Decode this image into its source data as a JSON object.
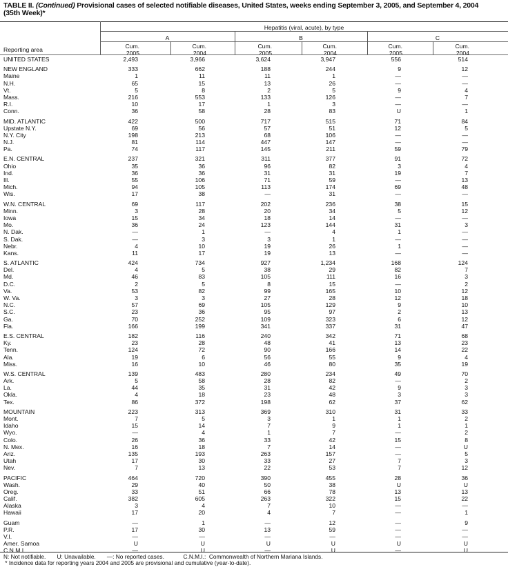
{
  "title": {
    "label": "TABLE II.",
    "continued": "(Continued)",
    "text": "Provisional cases of selected notifiable diseases, United States, weeks ending September 3, 2005, and September 4, 2004",
    "line2": "(35th Week)*"
  },
  "header": {
    "disease": "Hepatitis (viral, acute), by type",
    "types": [
      "A",
      "B",
      "C"
    ],
    "cum": "Cum.",
    "years": [
      "2005",
      "2004",
      "2005",
      "2004",
      "2005",
      "2004"
    ],
    "reporting_area": "Reporting area"
  },
  "groups": [
    {
      "rows": [
        {
          "area": "UNITED STATES",
          "values": [
            "2,493",
            "3,966",
            "3,624",
            "3,947",
            "556",
            "514"
          ]
        }
      ]
    },
    {
      "rows": [
        {
          "area": "NEW ENGLAND",
          "values": [
            "333",
            "662",
            "188",
            "244",
            "9",
            "12"
          ]
        },
        {
          "area": "Maine",
          "values": [
            "1",
            "11",
            "11",
            "1",
            "—",
            "—"
          ]
        },
        {
          "area": "N.H.",
          "values": [
            "65",
            "15",
            "13",
            "26",
            "—",
            "—"
          ]
        },
        {
          "area": "Vt.",
          "values": [
            "5",
            "8",
            "2",
            "5",
            "9",
            "4"
          ]
        },
        {
          "area": "Mass.",
          "values": [
            "216",
            "553",
            "133",
            "126",
            "—",
            "7"
          ]
        },
        {
          "area": "R.I.",
          "values": [
            "10",
            "17",
            "1",
            "3",
            "—",
            "—"
          ]
        },
        {
          "area": "Conn.",
          "values": [
            "36",
            "58",
            "28",
            "83",
            "U",
            "1"
          ]
        }
      ]
    },
    {
      "rows": [
        {
          "area": "MID. ATLANTIC",
          "values": [
            "422",
            "500",
            "717",
            "515",
            "71",
            "84"
          ]
        },
        {
          "area": "Upstate N.Y.",
          "values": [
            "69",
            "56",
            "57",
            "51",
            "12",
            "5"
          ]
        },
        {
          "area": "N.Y. City",
          "values": [
            "198",
            "213",
            "68",
            "106",
            "—",
            "—"
          ]
        },
        {
          "area": "N.J.",
          "values": [
            "81",
            "114",
            "447",
            "147",
            "—",
            "—"
          ]
        },
        {
          "area": "Pa.",
          "values": [
            "74",
            "117",
            "145",
            "211",
            "59",
            "79"
          ]
        }
      ]
    },
    {
      "rows": [
        {
          "area": "E.N. CENTRAL",
          "values": [
            "237",
            "321",
            "311",
            "377",
            "91",
            "72"
          ]
        },
        {
          "area": "Ohio",
          "values": [
            "35",
            "36",
            "96",
            "82",
            "3",
            "4"
          ]
        },
        {
          "area": "Ind.",
          "values": [
            "36",
            "36",
            "31",
            "31",
            "19",
            "7"
          ]
        },
        {
          "area": "Ill.",
          "values": [
            "55",
            "106",
            "71",
            "59",
            "—",
            "13"
          ]
        },
        {
          "area": "Mich.",
          "values": [
            "94",
            "105",
            "113",
            "174",
            "69",
            "48"
          ]
        },
        {
          "area": "Wis.",
          "values": [
            "17",
            "38",
            "—",
            "31",
            "—",
            "—"
          ]
        }
      ]
    },
    {
      "rows": [
        {
          "area": "W.N. CENTRAL",
          "values": [
            "69",
            "117",
            "202",
            "236",
            "38",
            "15"
          ]
        },
        {
          "area": "Minn.",
          "values": [
            "3",
            "28",
            "20",
            "34",
            "5",
            "12"
          ]
        },
        {
          "area": "Iowa",
          "values": [
            "15",
            "34",
            "18",
            "14",
            "—",
            "—"
          ]
        },
        {
          "area": "Mo.",
          "values": [
            "36",
            "24",
            "123",
            "144",
            "31",
            "3"
          ]
        },
        {
          "area": "N. Dak.",
          "values": [
            "—",
            "1",
            "—",
            "4",
            "1",
            "—"
          ]
        },
        {
          "area": "S. Dak.",
          "values": [
            "—",
            "3",
            "3",
            "1",
            "—",
            "—"
          ]
        },
        {
          "area": "Nebr.",
          "values": [
            "4",
            "10",
            "19",
            "26",
            "1",
            "—"
          ]
        },
        {
          "area": "Kans.",
          "values": [
            "11",
            "17",
            "19",
            "13",
            "—",
            "—"
          ]
        }
      ]
    },
    {
      "rows": [
        {
          "area": "S. ATLANTIC",
          "values": [
            "424",
            "734",
            "927",
            "1,234",
            "168",
            "124"
          ]
        },
        {
          "area": "Del.",
          "values": [
            "4",
            "5",
            "38",
            "29",
            "82",
            "7"
          ]
        },
        {
          "area": "Md.",
          "values": [
            "46",
            "83",
            "105",
            "111",
            "16",
            "3"
          ]
        },
        {
          "area": "D.C.",
          "values": [
            "2",
            "5",
            "8",
            "15",
            "—",
            "2"
          ]
        },
        {
          "area": "Va.",
          "values": [
            "53",
            "82",
            "99",
            "165",
            "10",
            "12"
          ]
        },
        {
          "area": "W. Va.",
          "values": [
            "3",
            "3",
            "27",
            "28",
            "12",
            "18"
          ]
        },
        {
          "area": "N.C.",
          "values": [
            "57",
            "69",
            "105",
            "129",
            "9",
            "10"
          ]
        },
        {
          "area": "S.C.",
          "values": [
            "23",
            "36",
            "95",
            "97",
            "2",
            "13"
          ]
        },
        {
          "area": "Ga.",
          "values": [
            "70",
            "252",
            "109",
            "323",
            "6",
            "12"
          ]
        },
        {
          "area": "Fla.",
          "values": [
            "166",
            "199",
            "341",
            "337",
            "31",
            "47"
          ]
        }
      ]
    },
    {
      "rows": [
        {
          "area": "E.S. CENTRAL",
          "values": [
            "182",
            "116",
            "240",
            "342",
            "71",
            "68"
          ]
        },
        {
          "area": "Ky.",
          "values": [
            "23",
            "28",
            "48",
            "41",
            "13",
            "23"
          ]
        },
        {
          "area": "Tenn.",
          "values": [
            "124",
            "72",
            "90",
            "166",
            "14",
            "22"
          ]
        },
        {
          "area": "Ala.",
          "values": [
            "19",
            "6",
            "56",
            "55",
            "9",
            "4"
          ]
        },
        {
          "area": "Miss.",
          "values": [
            "16",
            "10",
            "46",
            "80",
            "35",
            "19"
          ]
        }
      ]
    },
    {
      "rows": [
        {
          "area": "W.S. CENTRAL",
          "values": [
            "139",
            "483",
            "280",
            "234",
            "49",
            "70"
          ]
        },
        {
          "area": "Ark.",
          "values": [
            "5",
            "58",
            "28",
            "82",
            "—",
            "2"
          ]
        },
        {
          "area": "La.",
          "values": [
            "44",
            "35",
            "31",
            "42",
            "9",
            "3"
          ]
        },
        {
          "area": "Okla.",
          "values": [
            "4",
            "18",
            "23",
            "48",
            "3",
            "3"
          ]
        },
        {
          "area": "Tex.",
          "values": [
            "86",
            "372",
            "198",
            "62",
            "37",
            "62"
          ]
        }
      ]
    },
    {
      "rows": [
        {
          "area": "MOUNTAIN",
          "values": [
            "223",
            "313",
            "369",
            "310",
            "31",
            "33"
          ]
        },
        {
          "area": "Mont.",
          "values": [
            "7",
            "5",
            "3",
            "1",
            "1",
            "2"
          ]
        },
        {
          "area": "Idaho",
          "values": [
            "15",
            "14",
            "7",
            "9",
            "1",
            "1"
          ]
        },
        {
          "area": "Wyo.",
          "values": [
            "—",
            "4",
            "1",
            "7",
            "—",
            "2"
          ]
        },
        {
          "area": "Colo.",
          "values": [
            "26",
            "36",
            "33",
            "42",
            "15",
            "8"
          ]
        },
        {
          "area": "N. Mex.",
          "values": [
            "16",
            "18",
            "7",
            "14",
            "—",
            "U"
          ]
        },
        {
          "area": "Ariz.",
          "values": [
            "135",
            "193",
            "263",
            "157",
            "—",
            "5"
          ]
        },
        {
          "area": "Utah",
          "values": [
            "17",
            "30",
            "33",
            "27",
            "7",
            "3"
          ]
        },
        {
          "area": "Nev.",
          "values": [
            "7",
            "13",
            "22",
            "53",
            "7",
            "12"
          ]
        }
      ]
    },
    {
      "rows": [
        {
          "area": "PACIFIC",
          "values": [
            "464",
            "720",
            "390",
            "455",
            "28",
            "36"
          ]
        },
        {
          "area": "Wash.",
          "values": [
            "29",
            "40",
            "50",
            "38",
            "U",
            "U"
          ]
        },
        {
          "area": "Oreg.",
          "values": [
            "33",
            "51",
            "66",
            "78",
            "13",
            "13"
          ]
        },
        {
          "area": "Calif.",
          "values": [
            "382",
            "605",
            "263",
            "322",
            "15",
            "22"
          ]
        },
        {
          "area": "Alaska",
          "values": [
            "3",
            "4",
            "7",
            "10",
            "—",
            "—"
          ]
        },
        {
          "area": "Hawaii",
          "values": [
            "17",
            "20",
            "4",
            "7",
            "—",
            "1"
          ]
        }
      ]
    },
    {
      "rows": [
        {
          "area": "Guam",
          "values": [
            "—",
            "1",
            "—",
            "12",
            "—",
            "9"
          ]
        },
        {
          "area": "P.R.",
          "values": [
            "17",
            "30",
            "13",
            "59",
            "—",
            "—"
          ]
        },
        {
          "area": "V.I.",
          "values": [
            "—",
            "—",
            "—",
            "—",
            "—",
            "—"
          ]
        },
        {
          "area": "Amer. Samoa",
          "values": [
            "U",
            "U",
            "U",
            "U",
            "U",
            "U"
          ]
        },
        {
          "area": "C.N.M.I.",
          "values": [
            "—",
            "U",
            "—",
            "U",
            "—",
            "U"
          ]
        }
      ]
    }
  ],
  "footnotes": {
    "legend": "N: Not notifiable.       U: Unavailable.       —: No reported cases.            C.N.M.I.:  Commonwealth of Northern Mariana Islands.",
    "asterisk": " * Incidence data for reporting years 2004 and 2005 are provisional and cumulative (year-to-date)."
  }
}
